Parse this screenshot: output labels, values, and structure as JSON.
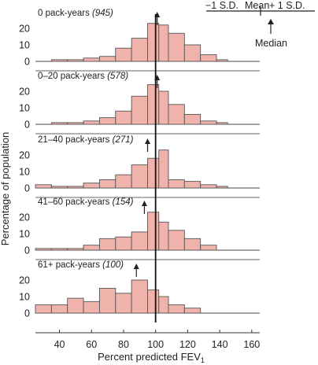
{
  "chart_data": {
    "type": "bar",
    "xlabel_main": "Percent predicted FEV",
    "xlabel_sub": "1",
    "ylabel": "Percentage of population",
    "xlim": [
      25,
      165
    ],
    "ylim": [
      0,
      25
    ],
    "x_ticks": [
      40,
      60,
      80,
      100,
      120,
      140,
      160
    ],
    "y_ticks": [
      0,
      10,
      20
    ],
    "bin_width": 10,
    "reference_line_x": 100,
    "colors": {
      "bar_fill": "#efb3ac",
      "bar_stroke": "#555555"
    },
    "legend": {
      "minus": "−1 S.D.",
      "mean": "Mean",
      "plus": "+ 1 S.D.",
      "median": "Median"
    },
    "panels": [
      {
        "label": "0 pack-years",
        "n": "(945)",
        "median": 101,
        "bins": [
          {
            "x0": 35,
            "x1": 45,
            "value": 1
          },
          {
            "x0": 45,
            "x1": 55,
            "value": 1
          },
          {
            "x0": 55,
            "x1": 65,
            "value": 2
          },
          {
            "x0": 65,
            "x1": 75,
            "value": 3
          },
          {
            "x0": 75,
            "x1": 85,
            "value": 8
          },
          {
            "x0": 85,
            "x1": 95,
            "value": 14
          },
          {
            "x0": 95,
            "x1": 102,
            "value": 23
          },
          {
            "x0": 102,
            "x1": 108,
            "value": 22
          },
          {
            "x0": 108,
            "x1": 118,
            "value": 17
          },
          {
            "x0": 118,
            "x1": 128,
            "value": 10
          },
          {
            "x0": 128,
            "x1": 138,
            "value": 4
          },
          {
            "x0": 138,
            "x1": 145,
            "value": 1
          }
        ]
      },
      {
        "label": "0–20 pack-years",
        "n": "(578)",
        "median": 101,
        "bins": [
          {
            "x0": 35,
            "x1": 45,
            "value": 1
          },
          {
            "x0": 45,
            "x1": 55,
            "value": 1
          },
          {
            "x0": 55,
            "x1": 65,
            "value": 2
          },
          {
            "x0": 65,
            "x1": 75,
            "value": 4
          },
          {
            "x0": 75,
            "x1": 85,
            "value": 8
          },
          {
            "x0": 85,
            "x1": 95,
            "value": 17
          },
          {
            "x0": 95,
            "x1": 102,
            "value": 24
          },
          {
            "x0": 102,
            "x1": 108,
            "value": 20
          },
          {
            "x0": 108,
            "x1": 118,
            "value": 12
          },
          {
            "x0": 118,
            "x1": 128,
            "value": 6
          },
          {
            "x0": 128,
            "x1": 138,
            "value": 2
          },
          {
            "x0": 138,
            "x1": 145,
            "value": 1
          }
        ]
      },
      {
        "label": "21–40 pack-years",
        "n": "(271)",
        "median": 95,
        "bins": [
          {
            "x0": 25,
            "x1": 35,
            "value": 2
          },
          {
            "x0": 35,
            "x1": 45,
            "value": 1
          },
          {
            "x0": 45,
            "x1": 55,
            "value": 1
          },
          {
            "x0": 55,
            "x1": 65,
            "value": 3
          },
          {
            "x0": 65,
            "x1": 75,
            "value": 5
          },
          {
            "x0": 75,
            "x1": 85,
            "value": 8
          },
          {
            "x0": 85,
            "x1": 95,
            "value": 14
          },
          {
            "x0": 95,
            "x1": 102,
            "value": 18
          },
          {
            "x0": 102,
            "x1": 108,
            "value": 23
          },
          {
            "x0": 108,
            "x1": 118,
            "value": 5
          },
          {
            "x0": 118,
            "x1": 128,
            "value": 4
          },
          {
            "x0": 128,
            "x1": 138,
            "value": 2
          },
          {
            "x0": 138,
            "x1": 145,
            "value": 1
          }
        ]
      },
      {
        "label": "41–60 pack-years",
        "n": "(154)",
        "median": 93,
        "bins": [
          {
            "x0": 25,
            "x1": 35,
            "value": 1
          },
          {
            "x0": 35,
            "x1": 45,
            "value": 1
          },
          {
            "x0": 45,
            "x1": 55,
            "value": 1
          },
          {
            "x0": 55,
            "x1": 65,
            "value": 3
          },
          {
            "x0": 65,
            "x1": 75,
            "value": 7
          },
          {
            "x0": 75,
            "x1": 85,
            "value": 8
          },
          {
            "x0": 85,
            "x1": 95,
            "value": 11
          },
          {
            "x0": 95,
            "x1": 102,
            "value": 23
          },
          {
            "x0": 102,
            "x1": 108,
            "value": 17
          },
          {
            "x0": 108,
            "x1": 118,
            "value": 12
          },
          {
            "x0": 118,
            "x1": 128,
            "value": 7
          },
          {
            "x0": 128,
            "x1": 138,
            "value": 3
          }
        ]
      },
      {
        "label": "61+ pack-years",
        "n": "(100)",
        "median": 88,
        "bins": [
          {
            "x0": 25,
            "x1": 35,
            "value": 5
          },
          {
            "x0": 35,
            "x1": 45,
            "value": 5
          },
          {
            "x0": 45,
            "x1": 55,
            "value": 9
          },
          {
            "x0": 55,
            "x1": 65,
            "value": 7
          },
          {
            "x0": 65,
            "x1": 75,
            "value": 15
          },
          {
            "x0": 75,
            "x1": 85,
            "value": 12
          },
          {
            "x0": 85,
            "x1": 95,
            "value": 20
          },
          {
            "x0": 95,
            "x1": 102,
            "value": 14
          },
          {
            "x0": 102,
            "x1": 108,
            "value": 10
          },
          {
            "x0": 108,
            "x1": 118,
            "value": 5
          },
          {
            "x0": 118,
            "x1": 128,
            "value": 3
          }
        ]
      }
    ]
  }
}
